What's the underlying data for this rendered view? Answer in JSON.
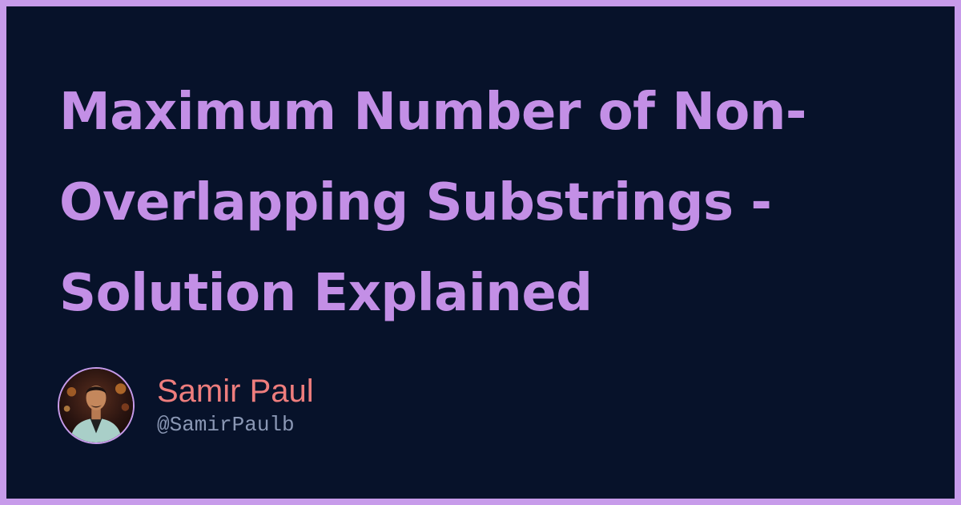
{
  "title": "Maximum Number of Non-Overlapping Substrings - Solution Explained",
  "author": {
    "name": "Samir Paul",
    "handle": "@SamirPaulb"
  },
  "colors": {
    "frame": "#c79bea",
    "background": "#07122a",
    "title": "#c38fe6",
    "name": "#ee7d7d",
    "handle": "#8a97b4"
  },
  "icons": {
    "avatar": "author-avatar-photo"
  }
}
